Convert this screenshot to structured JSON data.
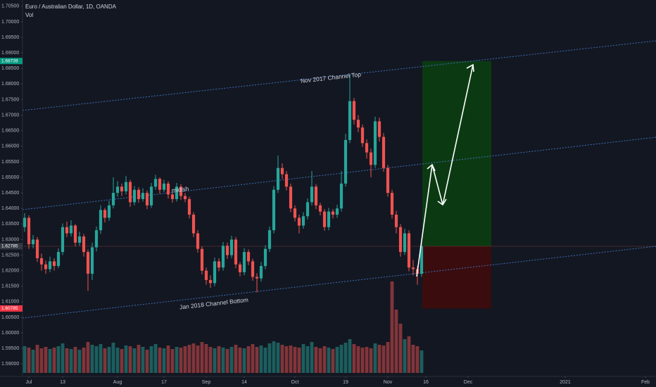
{
  "chart_data": {
    "type": "candlestick",
    "title": "Euro / Australian Dollar, 1D, OANDA",
    "subtitle": "Vol",
    "annotations": [
      "Nov 2017 Channel Top",
      "midish",
      "Jan 2018 Channel Bottom"
    ],
    "up_color": "#26a69a",
    "down_color": "#ef5350",
    "ylim": [
      1.586,
      1.707
    ],
    "xlim": [
      -0.5,
      149.5
    ],
    "vlim": [
      0,
      140
    ],
    "yticks": [
      {
        "value": 1.59,
        "label": "1.59000"
      },
      {
        "value": 1.595,
        "label": "1.59500"
      },
      {
        "value": 1.6,
        "label": "1.60000"
      },
      {
        "value": 1.605,
        "label": "1.60500"
      },
      {
        "value": 1.61,
        "label": "1.61000"
      },
      {
        "value": 1.615,
        "label": "1.61500"
      },
      {
        "value": 1.62,
        "label": "1.62000"
      },
      {
        "value": 1.625,
        "label": "1.62500"
      },
      {
        "value": 1.63,
        "label": "1.63000"
      },
      {
        "value": 1.635,
        "label": "1.63500"
      },
      {
        "value": 1.64,
        "label": "1.64000"
      },
      {
        "value": 1.645,
        "label": "1.64500"
      },
      {
        "value": 1.65,
        "label": "1.65000"
      },
      {
        "value": 1.655,
        "label": "1.65500"
      },
      {
        "value": 1.66,
        "label": "1.66000"
      },
      {
        "value": 1.665,
        "label": "1.66500"
      },
      {
        "value": 1.67,
        "label": "1.67000"
      },
      {
        "value": 1.675,
        "label": "1.67500"
      },
      {
        "value": 1.68,
        "label": "1.68000"
      },
      {
        "value": 1.685,
        "label": "1.68500"
      },
      {
        "value": 1.69,
        "label": "1.69000"
      },
      {
        "value": 1.695,
        "label": "1.69500"
      },
      {
        "value": 1.7,
        "label": "1.70000"
      },
      {
        "value": 1.705,
        "label": "1.70500"
      }
    ],
    "xticks": [
      {
        "value": 1,
        "label": "Jul"
      },
      {
        "value": 9,
        "label": "13"
      },
      {
        "value": 22,
        "label": "Aug"
      },
      {
        "value": 33,
        "label": "17"
      },
      {
        "value": 43,
        "label": "Sep"
      },
      {
        "value": 52,
        "label": "14"
      },
      {
        "value": 64,
        "label": "Oct"
      },
      {
        "value": 76,
        "label": "19"
      },
      {
        "value": 86,
        "label": "Nov"
      },
      {
        "value": 95,
        "label": "16"
      },
      {
        "value": 105,
        "label": "Dec"
      },
      {
        "value": 128,
        "label": "2021"
      },
      {
        "value": 147,
        "label": "Feb"
      }
    ],
    "position": {
      "target": 1.68739,
      "entry": 1.62785,
      "stop": 1.60785
    },
    "candles": [
      [
        1.634,
        1.6385,
        1.6325,
        1.637
      ],
      [
        1.637,
        1.6378,
        1.627,
        1.6285
      ],
      [
        1.6285,
        1.6315,
        1.6272,
        1.63
      ],
      [
        1.63,
        1.6308,
        1.6228,
        1.624
      ],
      [
        1.624,
        1.6255,
        1.62,
        1.622
      ],
      [
        1.622,
        1.6232,
        1.619,
        1.6205
      ],
      [
        1.6205,
        1.6245,
        1.6195,
        1.623
      ],
      [
        1.623,
        1.624,
        1.62,
        1.6215
      ],
      [
        1.6215,
        1.6272,
        1.6208,
        1.626
      ],
      [
        1.626,
        1.6352,
        1.625,
        1.634
      ],
      [
        1.634,
        1.6358,
        1.6308,
        1.632
      ],
      [
        1.632,
        1.6362,
        1.631,
        1.6345
      ],
      [
        1.6345,
        1.635,
        1.6278,
        1.629
      ],
      [
        1.629,
        1.6325,
        1.628,
        1.631
      ],
      [
        1.631,
        1.6318,
        1.6245,
        1.626
      ],
      [
        1.626,
        1.6268,
        1.6135,
        1.619
      ],
      [
        1.619,
        1.629,
        1.617,
        1.6275
      ],
      [
        1.6275,
        1.6342,
        1.6262,
        1.633
      ],
      [
        1.633,
        1.641,
        1.6318,
        1.6395
      ],
      [
        1.6395,
        1.6402,
        1.6355,
        1.637
      ],
      [
        1.637,
        1.6425,
        1.636,
        1.641
      ],
      [
        1.641,
        1.65,
        1.64,
        1.645
      ],
      [
        1.645,
        1.6488,
        1.6438,
        1.647
      ],
      [
        1.647,
        1.648,
        1.644,
        1.6455
      ],
      [
        1.6455,
        1.6505,
        1.6445,
        1.6485
      ],
      [
        1.6485,
        1.6492,
        1.6405,
        1.642
      ],
      [
        1.642,
        1.6472,
        1.641,
        1.646
      ],
      [
        1.646,
        1.6468,
        1.6418,
        1.643
      ],
      [
        1.643,
        1.6465,
        1.6422,
        1.645
      ],
      [
        1.645,
        1.6458,
        1.6398,
        1.641
      ],
      [
        1.641,
        1.6482,
        1.6402,
        1.647
      ],
      [
        1.647,
        1.6508,
        1.646,
        1.6495
      ],
      [
        1.6495,
        1.65,
        1.6448,
        1.646
      ],
      [
        1.646,
        1.6492,
        1.6452,
        1.648
      ],
      [
        1.648,
        1.6488,
        1.6432,
        1.6445
      ],
      [
        1.6445,
        1.6455,
        1.6418,
        1.643
      ],
      [
        1.643,
        1.6482,
        1.6422,
        1.647
      ],
      [
        1.647,
        1.6478,
        1.6428,
        1.644
      ],
      [
        1.644,
        1.645,
        1.642,
        1.643
      ],
      [
        1.643,
        1.6438,
        1.6368,
        1.638
      ],
      [
        1.638,
        1.6388,
        1.6308,
        1.632
      ],
      [
        1.632,
        1.633,
        1.6258,
        1.627
      ],
      [
        1.627,
        1.6278,
        1.6188,
        1.62
      ],
      [
        1.62,
        1.621,
        1.6155,
        1.617
      ],
      [
        1.617,
        1.6185,
        1.6145,
        1.616
      ],
      [
        1.616,
        1.6242,
        1.615,
        1.623
      ],
      [
        1.623,
        1.624,
        1.6198,
        1.621
      ],
      [
        1.621,
        1.6292,
        1.62,
        1.628
      ],
      [
        1.628,
        1.629,
        1.6238,
        1.625
      ],
      [
        1.625,
        1.6312,
        1.624,
        1.63
      ],
      [
        1.63,
        1.6308,
        1.6208,
        1.622
      ],
      [
        1.622,
        1.6228,
        1.6182,
        1.6195
      ],
      [
        1.6195,
        1.6272,
        1.6185,
        1.626
      ],
      [
        1.626,
        1.6268,
        1.6218,
        1.623
      ],
      [
        1.623,
        1.6238,
        1.6168,
        1.618
      ],
      [
        1.618,
        1.6192,
        1.613,
        1.6175
      ],
      [
        1.6175,
        1.6228,
        1.6165,
        1.6215
      ],
      [
        1.6215,
        1.6282,
        1.6205,
        1.627
      ],
      [
        1.627,
        1.6342,
        1.626,
        1.633
      ],
      [
        1.633,
        1.6472,
        1.632,
        1.646
      ],
      [
        1.646,
        1.657,
        1.645,
        1.653
      ],
      [
        1.653,
        1.6545,
        1.6495,
        1.651
      ],
      [
        1.651,
        1.652,
        1.6458,
        1.647
      ],
      [
        1.647,
        1.648,
        1.6388,
        1.64
      ],
      [
        1.64,
        1.641,
        1.6358,
        1.637
      ],
      [
        1.637,
        1.638,
        1.632,
        1.6345
      ],
      [
        1.6345,
        1.6388,
        1.6335,
        1.6375
      ],
      [
        1.6375,
        1.6432,
        1.6365,
        1.642
      ],
      [
        1.642,
        1.652,
        1.641,
        1.647
      ],
      [
        1.647,
        1.6478,
        1.6398,
        1.641
      ],
      [
        1.641,
        1.6418,
        1.6378,
        1.639
      ],
      [
        1.639,
        1.6398,
        1.6328,
        1.634
      ],
      [
        1.634,
        1.6402,
        1.633,
        1.639
      ],
      [
        1.639,
        1.6398,
        1.6368,
        1.638
      ],
      [
        1.638,
        1.6412,
        1.637,
        1.64
      ],
      [
        1.64,
        1.652,
        1.639,
        1.648
      ],
      [
        1.648,
        1.664,
        1.647,
        1.662
      ],
      [
        1.662,
        1.683,
        1.661,
        1.6745
      ],
      [
        1.6745,
        1.6755,
        1.667,
        1.6685
      ],
      [
        1.6685,
        1.67,
        1.6645,
        1.666
      ],
      [
        1.666,
        1.667,
        1.6598,
        1.661
      ],
      [
        1.661,
        1.6622,
        1.656,
        1.658
      ],
      [
        1.658,
        1.6592,
        1.65,
        1.654
      ],
      [
        1.654,
        1.6695,
        1.653,
        1.668
      ],
      [
        1.668,
        1.6692,
        1.6615,
        1.663
      ],
      [
        1.663,
        1.6642,
        1.6518,
        1.653
      ],
      [
        1.653,
        1.654,
        1.6438,
        1.645
      ],
      [
        1.645,
        1.646,
        1.6368,
        1.638
      ],
      [
        1.638,
        1.6392,
        1.632,
        1.634
      ],
      [
        1.634,
        1.635,
        1.6245,
        1.626
      ],
      [
        1.626,
        1.6335,
        1.625,
        1.632
      ],
      [
        1.632,
        1.633,
        1.6198,
        1.621
      ],
      [
        1.621,
        1.6235,
        1.6185,
        1.6205
      ],
      [
        1.6205,
        1.6215,
        1.6155,
        1.619
      ],
      [
        1.619,
        1.63,
        1.618,
        1.62785
      ]
    ],
    "volume": [
      38,
      36,
      33,
      40,
      35,
      37,
      34,
      36,
      38,
      42,
      35,
      34,
      37,
      33,
      36,
      44,
      40,
      38,
      41,
      35,
      37,
      43,
      36,
      34,
      39,
      38,
      35,
      40,
      37,
      33,
      38,
      41,
      36,
      35,
      39,
      34,
      37,
      36,
      38,
      40,
      42,
      39,
      44,
      41,
      37,
      35,
      38,
      36,
      34,
      37,
      40,
      36,
      35,
      38,
      41,
      37,
      39,
      36,
      42,
      45,
      43,
      40,
      38,
      39,
      37,
      36,
      41,
      38,
      44,
      37,
      35,
      38,
      36,
      34,
      37,
      40,
      43,
      48,
      41,
      38,
      36,
      37,
      35,
      42,
      40,
      39,
      44,
      130,
      90,
      70,
      48,
      52,
      40,
      38,
      32
    ]
  }
}
